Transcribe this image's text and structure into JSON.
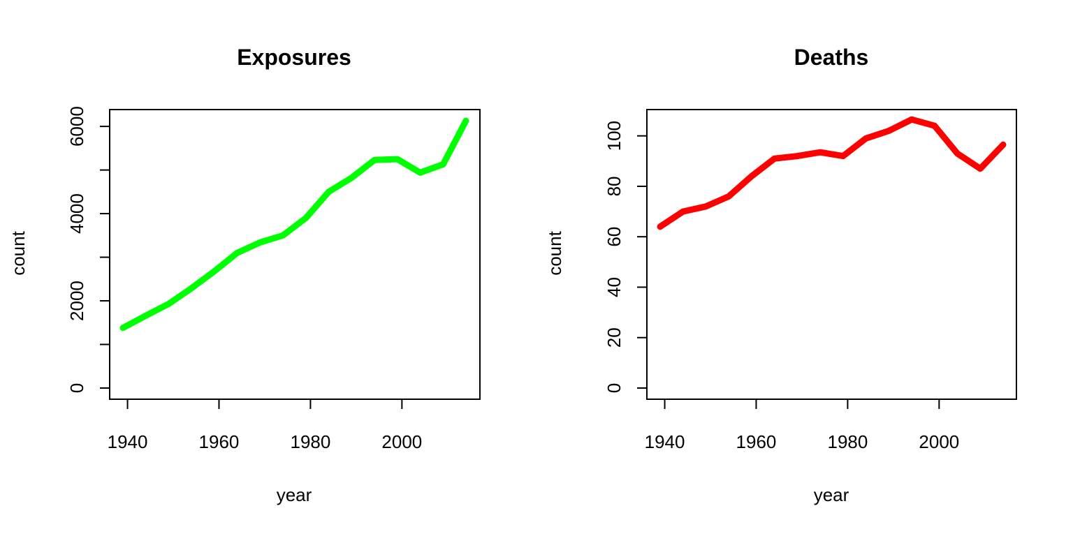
{
  "chart_data": [
    {
      "type": "line",
      "title": "Exposures",
      "xlabel": "year",
      "ylabel": "count",
      "xlim": [
        1939,
        2014
      ],
      "ylim": [
        0,
        6130
      ],
      "xticks": [
        1940,
        1960,
        1980,
        2000
      ],
      "yticks": [
        0,
        1000,
        2000,
        3000,
        4000,
        5000,
        6000
      ],
      "ytick_labels": [
        "0",
        "",
        "2000",
        "",
        "4000",
        "",
        "6000"
      ],
      "grid": false,
      "series": [
        {
          "color": "#00ff00",
          "x": [
            1939,
            1944,
            1949,
            1954,
            1959,
            1964,
            1969,
            1974,
            1979,
            1984,
            1989,
            1994,
            1999,
            2004,
            2009,
            2014
          ],
          "y": [
            1380,
            1660,
            1930,
            2290,
            2680,
            3100,
            3340,
            3500,
            3900,
            4500,
            4820,
            5230,
            5250,
            4940,
            5130,
            6130
          ]
        }
      ]
    },
    {
      "type": "line",
      "title": "Deaths",
      "xlabel": "year",
      "ylabel": "count",
      "xlim": [
        1939,
        2014
      ],
      "ylim": [
        0,
        106
      ],
      "xticks": [
        1940,
        1960,
        1980,
        2000
      ],
      "yticks": [
        0,
        20,
        40,
        60,
        80,
        100
      ],
      "ytick_labels": [
        "0",
        "20",
        "40",
        "60",
        "80",
        "100"
      ],
      "grid": false,
      "series": [
        {
          "color": "#ff0000",
          "x": [
            1939,
            1944,
            1949,
            1954,
            1959,
            1964,
            1969,
            1974,
            1979,
            1984,
            1989,
            1994,
            1999,
            2004,
            2009,
            2014
          ],
          "y": [
            64,
            70,
            72,
            76,
            84,
            91,
            92,
            93.5,
            92,
            99,
            102,
            106.5,
            104,
            93,
            87,
            96.5
          ]
        }
      ]
    }
  ]
}
